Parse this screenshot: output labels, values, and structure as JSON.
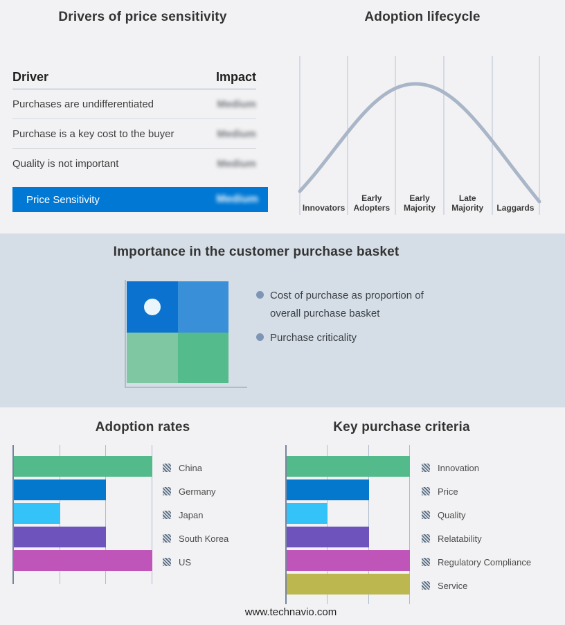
{
  "footer": {
    "url": "www.technavio.com"
  },
  "chart_data": [
    {
      "type": "table",
      "title": "Drivers of price sensitivity",
      "columns": [
        "Driver",
        "Impact"
      ],
      "col_labels": {
        "driver": "Driver",
        "impact": "Impact"
      },
      "rows": [
        {
          "driver": "Purchases are undifferentiated",
          "impact": "Medium"
        },
        {
          "driver": "Purchase is a key cost to the buyer",
          "impact": "Medium"
        },
        {
          "driver": "Quality is not important",
          "impact": "Medium"
        }
      ],
      "highlight_row": {
        "label": "Price Sensitivity",
        "impact": "Medium",
        "color": "#0078d4"
      },
      "note": "impact values rendered blurred in source image"
    },
    {
      "type": "line",
      "title": "Adoption lifecycle",
      "categories": [
        "Innovators",
        "Early Adopters",
        "Early Majority",
        "Late Majority",
        "Laggards"
      ],
      "curve": "bell curve peaking over Early Majority",
      "curve_color": "#a9b6c8",
      "gridlines": "vertical separators between stages"
    },
    {
      "type": "scatter",
      "title": "Importance in the customer purchase basket",
      "bullets": [
        "Cost of purchase as proportion of overall purchase basket",
        "Purchase criticality"
      ],
      "quadrants": {
        "top_left": "#0b73cf",
        "top_right": "#3a8fd9",
        "bottom_left": "#7ec7a2",
        "bottom_right": "#54bc8c"
      },
      "point": {
        "quadrant": "top-left",
        "color": "#eaf5fc"
      }
    },
    {
      "type": "bar",
      "title": "Adoption rates",
      "orientation": "horizontal",
      "categories": [
        "China",
        "Germany",
        "Japan",
        "South Korea",
        "US"
      ],
      "values": [
        3,
        2,
        1,
        2,
        3
      ],
      "xlim": [
        0,
        3
      ],
      "bar_colors": [
        "#52ba8b",
        "#0478cd",
        "#33c3f8",
        "#6e53bd",
        "#bf55b9"
      ],
      "gridlines": true,
      "legend_position": "right"
    },
    {
      "type": "bar",
      "title": "Key purchase criteria",
      "orientation": "horizontal",
      "categories": [
        "Innovation",
        "Price",
        "Quality",
        "Relatability",
        "Regulatory Compliance",
        "Service"
      ],
      "values": [
        3,
        2,
        1,
        2,
        3,
        3
      ],
      "xlim": [
        0,
        3
      ],
      "bar_colors": [
        "#52ba8b",
        "#0478cd",
        "#33c3f8",
        "#6e53bd",
        "#bf55b9",
        "#bcb84f"
      ],
      "gridlines": true,
      "legend_position": "right"
    }
  ]
}
